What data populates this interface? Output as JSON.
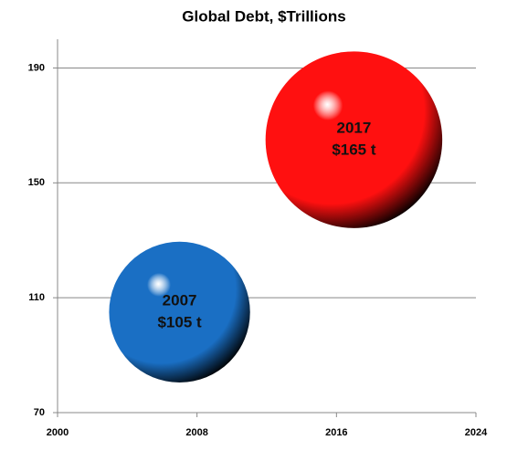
{
  "chart_data": {
    "type": "bubble",
    "title": "Global Debt, $Trillions",
    "x": [
      2007,
      2017
    ],
    "values": [
      105,
      165
    ],
    "sizes": [
      105,
      165
    ],
    "value_labels": [
      "$105 t",
      "$165 t"
    ],
    "colors": [
      "#1a6fc4",
      "#ff1010"
    ],
    "xlim": [
      2000,
      2024
    ],
    "xticks": [
      2000,
      2008,
      2016,
      2024
    ],
    "ylim": [
      70,
      200
    ],
    "yticks": [
      70,
      110,
      150,
      190
    ],
    "grid": true
  }
}
